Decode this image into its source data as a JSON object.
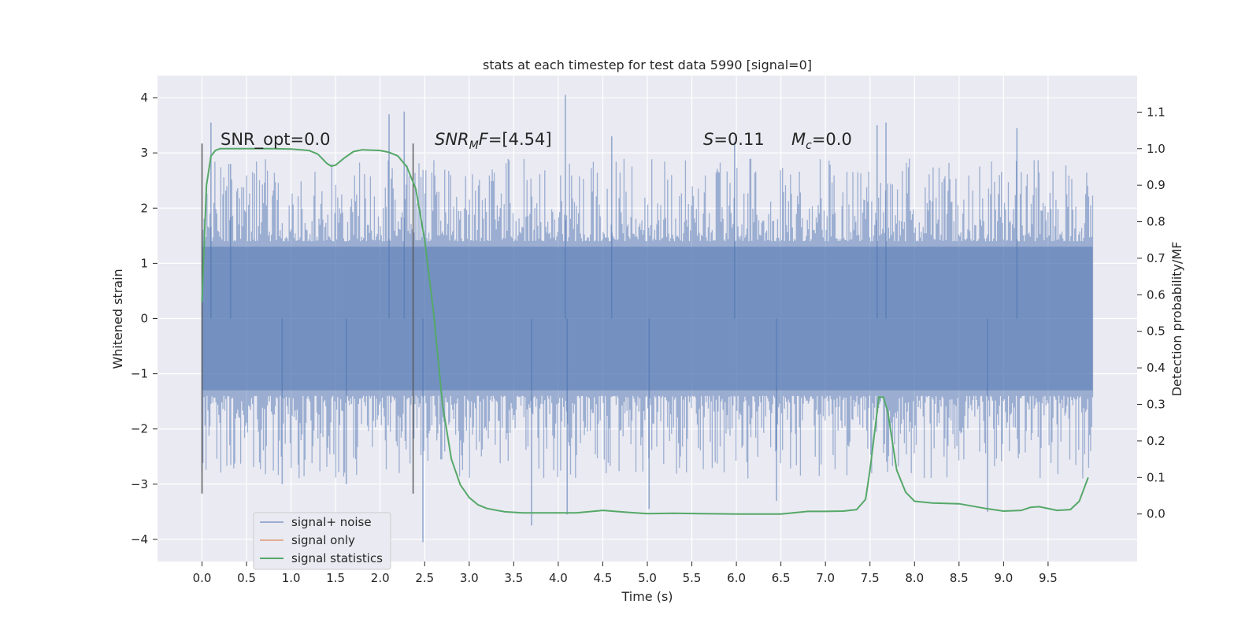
{
  "chart_data": {
    "type": "line",
    "title": "stats at each timestep for test data 5990 [signal=0]",
    "xlabel": "Time (s)",
    "ylabel_left": "Whitened strain",
    "ylabel_right": "Detection probability/MF",
    "xlim": [
      -0.5,
      10.5
    ],
    "ylim_left": [
      -4.4,
      4.4
    ],
    "ylim_right": [
      -0.13,
      1.2
    ],
    "x_ticks": [
      0.0,
      0.5,
      1.0,
      1.5,
      2.0,
      2.5,
      3.0,
      3.5,
      4.0,
      4.5,
      5.0,
      5.5,
      6.0,
      6.5,
      7.0,
      7.5,
      8.0,
      8.5,
      9.0,
      9.5
    ],
    "x_tick_labels": [
      "0.0",
      "0.5",
      "1.0",
      "1.5",
      "2.0",
      "2.5",
      "3.0",
      "3.5",
      "4.0",
      "4.5",
      "5.0",
      "5.5",
      "6.0",
      "6.5",
      "7.0",
      "7.5",
      "8.0",
      "8.5",
      "9.0",
      "9.5"
    ],
    "y_left_ticks": [
      4,
      3,
      2,
      1,
      0,
      -1,
      -2,
      -3,
      -4
    ],
    "y_left_tick_labels": [
      "4",
      "3",
      "2",
      "1",
      "0",
      "−1",
      "−2",
      "−3",
      "−4"
    ],
    "y_right_ticks": [
      1.1,
      1.0,
      0.9,
      0.8,
      0.7,
      0.6,
      0.5,
      0.4,
      0.3,
      0.2,
      0.1,
      0.0
    ],
    "y_right_tick_labels": [
      "1.1",
      "1.0",
      "0.9",
      "0.8",
      "0.7",
      "0.6",
      "0.5",
      "0.4",
      "0.3",
      "0.2",
      "0.1",
      "0.0"
    ],
    "grid": true,
    "legend_position": "lower-left",
    "legend": [
      "signal+ noise",
      "signal only",
      "signal statistics"
    ],
    "colors": {
      "noise": "#4c72b0",
      "signal": "#dd8452",
      "stats": "#55a868",
      "vline": "#555555",
      "background": "#eaeaf2",
      "grid": "#ffffff"
    },
    "annotations": {
      "snr_opt": "SNR_opt=0.0",
      "snr_mf_value": "=[4.54]",
      "s_value": "=0.11",
      "mc_value": "=0.0"
    },
    "vertical_lines_x": [
      0.0,
      2.37
    ],
    "noise_series": {
      "name": "signal+ noise",
      "x_range": [
        0.0,
        10.0
      ],
      "band": [
        -1.3,
        1.3
      ],
      "spikes": [
        {
          "x": 0.1,
          "y": 3.55
        },
        {
          "x": 0.32,
          "y": 2.8
        },
        {
          "x": 0.9,
          "y": -3.0
        },
        {
          "x": 1.62,
          "y": -3.0
        },
        {
          "x": 2.1,
          "y": 3.7
        },
        {
          "x": 2.27,
          "y": 3.75
        },
        {
          "x": 2.48,
          "y": -4.05
        },
        {
          "x": 3.7,
          "y": -3.75
        },
        {
          "x": 4.08,
          "y": 4.05
        },
        {
          "x": 4.1,
          "y": -3.55
        },
        {
          "x": 4.6,
          "y": 3.3
        },
        {
          "x": 5.02,
          "y": -3.45
        },
        {
          "x": 5.98,
          "y": 3.2
        },
        {
          "x": 6.45,
          "y": -3.3
        },
        {
          "x": 7.58,
          "y": 3.5
        },
        {
          "x": 7.68,
          "y": 3.55
        },
        {
          "x": 8.82,
          "y": -3.5
        },
        {
          "x": 9.15,
          "y": 3.45
        }
      ]
    },
    "stats_series": {
      "name": "signal statistics",
      "x": [
        0.0,
        0.05,
        0.1,
        0.15,
        0.2,
        0.3,
        0.5,
        0.8,
        1.0,
        1.2,
        1.3,
        1.4,
        1.45,
        1.5,
        1.6,
        1.7,
        1.8,
        2.0,
        2.1,
        2.2,
        2.3,
        2.4,
        2.5,
        2.6,
        2.7,
        2.8,
        2.9,
        3.0,
        3.1,
        3.2,
        3.4,
        3.6,
        3.8,
        4.0,
        4.2,
        4.5,
        4.8,
        5.0,
        5.3,
        5.6,
        6.0,
        6.5,
        6.8,
        7.0,
        7.2,
        7.35,
        7.45,
        7.5,
        7.55,
        7.6,
        7.65,
        7.7,
        7.75,
        7.8,
        7.9,
        8.0,
        8.2,
        8.5,
        8.8,
        9.0,
        9.2,
        9.3,
        9.4,
        9.6,
        9.75,
        9.85,
        9.95
      ],
      "y": [
        0.58,
        0.9,
        0.98,
        0.995,
        1.0,
        1.0,
        1.0,
        1.0,
        0.999,
        0.995,
        0.985,
        0.96,
        0.952,
        0.955,
        0.975,
        0.992,
        0.997,
        0.995,
        0.99,
        0.98,
        0.95,
        0.89,
        0.75,
        0.55,
        0.3,
        0.15,
        0.08,
        0.045,
        0.025,
        0.015,
        0.006,
        0.003,
        0.003,
        0.003,
        0.003,
        0.01,
        0.004,
        0.001,
        0.002,
        0.001,
        0.0,
        0.0,
        0.007,
        0.007,
        0.008,
        0.012,
        0.04,
        0.12,
        0.22,
        0.32,
        0.32,
        0.28,
        0.2,
        0.12,
        0.06,
        0.035,
        0.03,
        0.028,
        0.015,
        0.008,
        0.01,
        0.018,
        0.02,
        0.01,
        0.012,
        0.035,
        0.1
      ]
    }
  }
}
